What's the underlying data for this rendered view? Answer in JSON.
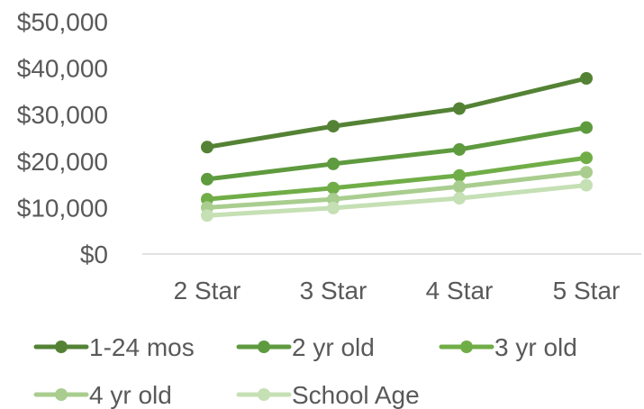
{
  "chart_data": {
    "type": "line",
    "title": "",
    "xlabel": "",
    "ylabel": "",
    "categories": [
      "2 Star",
      "3 Star",
      "4 Star",
      "5 Star"
    ],
    "ylim": [
      0,
      50000
    ],
    "yticks": [
      0,
      10000,
      20000,
      30000,
      40000,
      50000
    ],
    "ytick_labels": [
      "$0",
      "$10,000",
      "$20,000",
      "$30,000",
      "$40,000",
      "$50,000"
    ],
    "grid": false,
    "legend_position": "bottom",
    "series": [
      {
        "name": "1-24 mos",
        "color": "#548235",
        "values": [
          23000,
          27500,
          31300,
          37800
        ]
      },
      {
        "name": "2 yr old",
        "color": "#5E9A3E",
        "values": [
          16100,
          19400,
          22500,
          27200
        ]
      },
      {
        "name": "3 yr old",
        "color": "#70AD47",
        "values": [
          11800,
          14200,
          16900,
          20700
        ]
      },
      {
        "name": "4 yr old",
        "color": "#A9CD8F",
        "values": [
          10000,
          11800,
          14500,
          17600
        ]
      },
      {
        "name": "School Age",
        "color": "#C5E0B4",
        "values": [
          8300,
          9900,
          12000,
          14800
        ]
      }
    ]
  }
}
